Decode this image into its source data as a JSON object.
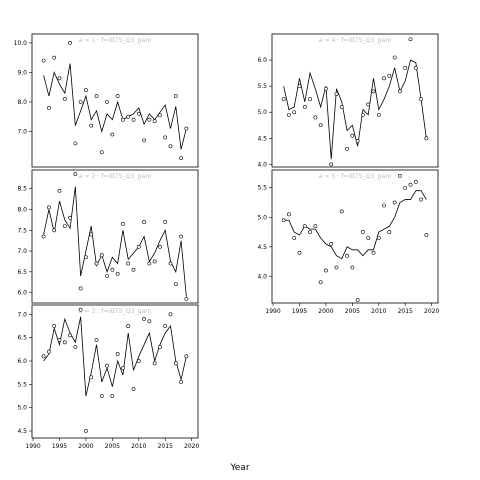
{
  "chart_data": {
    "xlabel": "Year",
    "panels": [
      {
        "type": "scatter+line",
        "label": "a = 1  :  f=IBTS_Q3_gam",
        "ylim": [
          5.8,
          10.3
        ],
        "yticks": [
          7,
          8,
          9,
          10
        ],
        "observed": [
          [
            1992,
            9.4
          ],
          [
            1993,
            7.8
          ],
          [
            1994,
            9.5
          ],
          [
            1995,
            8.8
          ],
          [
            1996,
            8.1
          ],
          [
            1997,
            10.0
          ],
          [
            1998,
            6.6
          ],
          [
            1999,
            8.0
          ],
          [
            2000,
            8.4
          ],
          [
            2001,
            7.2
          ],
          [
            2002,
            8.2
          ],
          [
            2003,
            6.3
          ],
          [
            2004,
            8.0
          ],
          [
            2005,
            6.9
          ],
          [
            2006,
            8.2
          ],
          [
            2007,
            7.4
          ],
          [
            2008,
            7.5
          ],
          [
            2009,
            7.4
          ],
          [
            2010,
            7.6
          ],
          [
            2011,
            6.7
          ],
          [
            2012,
            7.4
          ],
          [
            2013,
            7.35
          ],
          [
            2014,
            7.55
          ],
          [
            2015,
            6.8
          ],
          [
            2016,
            6.5
          ],
          [
            2017,
            8.2
          ],
          [
            2018,
            6.1
          ],
          [
            2019,
            7.1
          ]
        ],
        "fitted": [
          [
            1992,
            8.9
          ],
          [
            1993,
            8.2
          ],
          [
            1994,
            9.0
          ],
          [
            1995,
            8.6
          ],
          [
            1996,
            8.3
          ],
          [
            1997,
            9.3
          ],
          [
            1998,
            7.2
          ],
          [
            1999,
            7.7
          ],
          [
            2000,
            8.2
          ],
          [
            2001,
            7.4
          ],
          [
            2002,
            7.7
          ],
          [
            2003,
            7.0
          ],
          [
            2004,
            7.6
          ],
          [
            2005,
            7.4
          ],
          [
            2006,
            8.0
          ],
          [
            2007,
            7.4
          ],
          [
            2008,
            7.5
          ],
          [
            2009,
            7.6
          ],
          [
            2010,
            7.8
          ],
          [
            2011,
            7.25
          ],
          [
            2012,
            7.6
          ],
          [
            2013,
            7.4
          ],
          [
            2014,
            7.65
          ],
          [
            2015,
            7.9
          ],
          [
            2016,
            7.1
          ],
          [
            2017,
            7.85
          ],
          [
            2018,
            6.4
          ],
          [
            2019,
            7.1
          ]
        ]
      },
      {
        "type": "scatter+line",
        "label": "a = 2  :  f=IBTS_Q3_gam",
        "ylim": [
          5.75,
          8.95
        ],
        "yticks": [
          6.0,
          6.5,
          7.0,
          7.5,
          8.0,
          8.5
        ],
        "observed": [
          [
            1992,
            7.35
          ],
          [
            1993,
            8.05
          ],
          [
            1994,
            7.5
          ],
          [
            1995,
            8.45
          ],
          [
            1996,
            7.6
          ],
          [
            1997,
            7.8
          ],
          [
            1998,
            8.85
          ],
          [
            1999,
            6.1
          ],
          [
            2000,
            6.85
          ],
          [
            2001,
            7.4
          ],
          [
            2002,
            6.7
          ],
          [
            2003,
            6.9
          ],
          [
            2004,
            6.4
          ],
          [
            2005,
            6.55
          ],
          [
            2006,
            6.45
          ],
          [
            2007,
            7.65
          ],
          [
            2008,
            6.7
          ],
          [
            2009,
            6.55
          ],
          [
            2010,
            7.1
          ],
          [
            2011,
            7.7
          ],
          [
            2012,
            6.7
          ],
          [
            2013,
            6.75
          ],
          [
            2014,
            7.1
          ],
          [
            2015,
            7.7
          ],
          [
            2016,
            6.7
          ],
          [
            2017,
            6.2
          ],
          [
            2018,
            7.35
          ],
          [
            2019,
            5.85
          ]
        ],
        "fitted": [
          [
            1992,
            7.4
          ],
          [
            1993,
            8.0
          ],
          [
            1994,
            7.45
          ],
          [
            1995,
            8.2
          ],
          [
            1996,
            7.75
          ],
          [
            1997,
            7.55
          ],
          [
            1998,
            8.55
          ],
          [
            1999,
            6.4
          ],
          [
            2000,
            7.0
          ],
          [
            2001,
            7.6
          ],
          [
            2002,
            6.65
          ],
          [
            2003,
            6.9
          ],
          [
            2004,
            6.5
          ],
          [
            2005,
            6.85
          ],
          [
            2006,
            6.7
          ],
          [
            2007,
            7.5
          ],
          [
            2008,
            6.8
          ],
          [
            2009,
            6.95
          ],
          [
            2010,
            7.1
          ],
          [
            2011,
            7.35
          ],
          [
            2012,
            6.75
          ],
          [
            2013,
            6.95
          ],
          [
            2014,
            7.25
          ],
          [
            2015,
            7.5
          ],
          [
            2016,
            6.75
          ],
          [
            2017,
            6.5
          ],
          [
            2018,
            7.25
          ],
          [
            2019,
            5.9
          ]
        ]
      },
      {
        "type": "scatter+line",
        "label": "a = 3  :  f=IBTS_Q3_gam",
        "ylim": [
          4.35,
          7.2
        ],
        "yticks": [
          4.5,
          5.0,
          5.5,
          6.0,
          6.5,
          7.0
        ],
        "observed": [
          [
            1992,
            6.1
          ],
          [
            1993,
            6.2
          ],
          [
            1994,
            6.75
          ],
          [
            1995,
            6.45
          ],
          [
            1996,
            6.4
          ],
          [
            1997,
            6.55
          ],
          [
            1998,
            6.3
          ],
          [
            1999,
            7.1
          ],
          [
            2000,
            4.5
          ],
          [
            2001,
            5.65
          ],
          [
            2002,
            6.45
          ],
          [
            2003,
            5.25
          ],
          [
            2004,
            5.9
          ],
          [
            2005,
            5.25
          ],
          [
            2006,
            6.15
          ],
          [
            2007,
            5.85
          ],
          [
            2008,
            6.75
          ],
          [
            2009,
            5.4
          ],
          [
            2010,
            6.0
          ],
          [
            2011,
            6.9
          ],
          [
            2012,
            6.85
          ],
          [
            2013,
            5.95
          ],
          [
            2014,
            6.3
          ],
          [
            2015,
            6.75
          ],
          [
            2016,
            7.0
          ],
          [
            2017,
            5.95
          ],
          [
            2018,
            5.55
          ],
          [
            2019,
            6.1
          ]
        ],
        "fitted": [
          [
            1992,
            6.0
          ],
          [
            1993,
            6.15
          ],
          [
            1994,
            6.7
          ],
          [
            1995,
            6.35
          ],
          [
            1996,
            6.9
          ],
          [
            1997,
            6.6
          ],
          [
            1998,
            6.4
          ],
          [
            1999,
            6.95
          ],
          [
            2000,
            5.25
          ],
          [
            2001,
            5.75
          ],
          [
            2002,
            6.35
          ],
          [
            2003,
            5.55
          ],
          [
            2004,
            5.85
          ],
          [
            2005,
            5.45
          ],
          [
            2006,
            6.0
          ],
          [
            2007,
            5.7
          ],
          [
            2008,
            6.6
          ],
          [
            2009,
            5.8
          ],
          [
            2010,
            6.1
          ],
          [
            2011,
            6.35
          ],
          [
            2012,
            6.6
          ],
          [
            2013,
            6.0
          ],
          [
            2014,
            6.35
          ],
          [
            2015,
            6.6
          ],
          [
            2016,
            6.75
          ],
          [
            2017,
            6.0
          ],
          [
            2018,
            5.6
          ],
          [
            2019,
            6.1
          ]
        ]
      },
      {
        "type": "scatter+line",
        "label": "a = 4  :  f=IBTS_Q3_gam",
        "ylim": [
          3.95,
          6.5
        ],
        "yticks": [
          4.0,
          4.5,
          5.0,
          5.5,
          6.0
        ],
        "observed": [
          [
            1992,
            5.25
          ],
          [
            1993,
            4.95
          ],
          [
            1994,
            5.0
          ],
          [
            1995,
            5.5
          ],
          [
            1996,
            5.1
          ],
          [
            1997,
            5.25
          ],
          [
            1998,
            4.9
          ],
          [
            1999,
            4.75
          ],
          [
            2000,
            5.45
          ],
          [
            2001,
            4.0
          ],
          [
            2002,
            5.35
          ],
          [
            2003,
            5.1
          ],
          [
            2004,
            4.3
          ],
          [
            2005,
            4.55
          ],
          [
            2006,
            4.45
          ],
          [
            2007,
            4.95
          ],
          [
            2008,
            5.15
          ],
          [
            2009,
            5.4
          ],
          [
            2010,
            4.95
          ],
          [
            2011,
            5.65
          ],
          [
            2012,
            5.7
          ],
          [
            2013,
            6.05
          ],
          [
            2014,
            5.4
          ],
          [
            2015,
            5.85
          ],
          [
            2016,
            6.4
          ],
          [
            2017,
            5.85
          ],
          [
            2018,
            5.25
          ],
          [
            2019,
            4.5
          ]
        ],
        "fitted": [
          [
            1992,
            5.5
          ],
          [
            1993,
            5.05
          ],
          [
            1994,
            5.1
          ],
          [
            1995,
            5.65
          ],
          [
            1996,
            5.2
          ],
          [
            1997,
            5.75
          ],
          [
            1998,
            5.45
          ],
          [
            1999,
            5.1
          ],
          [
            2000,
            5.5
          ],
          [
            2001,
            4.1
          ],
          [
            2002,
            5.45
          ],
          [
            2003,
            5.2
          ],
          [
            2004,
            4.65
          ],
          [
            2005,
            4.75
          ],
          [
            2006,
            4.35
          ],
          [
            2007,
            5.05
          ],
          [
            2008,
            4.95
          ],
          [
            2009,
            5.65
          ],
          [
            2010,
            5.05
          ],
          [
            2011,
            5.25
          ],
          [
            2012,
            5.5
          ],
          [
            2013,
            5.85
          ],
          [
            2014,
            5.4
          ],
          [
            2015,
            5.6
          ],
          [
            2016,
            6.0
          ],
          [
            2017,
            5.95
          ],
          [
            2018,
            5.25
          ],
          [
            2019,
            4.5
          ]
        ]
      },
      {
        "type": "scatter+line",
        "label": "a = 5  :  f=IBTS_Q3_gam",
        "ylim": [
          3.55,
          5.8
        ],
        "yticks": [
          4.0,
          4.5,
          5.0,
          5.5
        ],
        "observed": [
          [
            1992,
            4.95
          ],
          [
            1993,
            5.05
          ],
          [
            1994,
            4.65
          ],
          [
            1995,
            4.4
          ],
          [
            1996,
            4.85
          ],
          [
            1997,
            4.75
          ],
          [
            1998,
            4.85
          ],
          [
            1999,
            3.9
          ],
          [
            2000,
            4.1
          ],
          [
            2001,
            4.55
          ],
          [
            2002,
            4.15
          ],
          [
            2003,
            5.1
          ],
          [
            2004,
            4.35
          ],
          [
            2005,
            4.15
          ],
          [
            2006,
            3.6
          ],
          [
            2007,
            4.75
          ],
          [
            2008,
            4.65
          ],
          [
            2009,
            4.4
          ],
          [
            2010,
            4.65
          ],
          [
            2011,
            5.2
          ],
          [
            2012,
            4.75
          ],
          [
            2013,
            5.25
          ],
          [
            2014,
            5.7
          ],
          [
            2015,
            5.5
          ],
          [
            2016,
            5.55
          ],
          [
            2017,
            5.6
          ],
          [
            2018,
            5.3
          ],
          [
            2019,
            4.7
          ]
        ],
        "fitted": [
          [
            1992,
            4.95
          ],
          [
            1993,
            4.95
          ],
          [
            1994,
            4.75
          ],
          [
            1995,
            4.7
          ],
          [
            1996,
            4.85
          ],
          [
            1997,
            4.8
          ],
          [
            1998,
            4.8
          ],
          [
            1999,
            4.65
          ],
          [
            2000,
            4.55
          ],
          [
            2001,
            4.5
          ],
          [
            2002,
            4.35
          ],
          [
            2003,
            4.3
          ],
          [
            2004,
            4.5
          ],
          [
            2005,
            4.45
          ],
          [
            2006,
            4.45
          ],
          [
            2007,
            4.35
          ],
          [
            2008,
            4.45
          ],
          [
            2009,
            4.45
          ],
          [
            2010,
            4.75
          ],
          [
            2011,
            4.8
          ],
          [
            2012,
            4.85
          ],
          [
            2013,
            5.0
          ],
          [
            2014,
            5.25
          ],
          [
            2015,
            5.3
          ],
          [
            2016,
            5.3
          ],
          [
            2017,
            5.45
          ],
          [
            2018,
            5.45
          ],
          [
            2019,
            5.3
          ]
        ]
      }
    ],
    "xlim": [
      1989.8,
      2021.2
    ],
    "xticks": [
      1990,
      1995,
      2000,
      2005,
      2010,
      2015,
      2020
    ],
    "ylabel": "",
    "title": ""
  }
}
